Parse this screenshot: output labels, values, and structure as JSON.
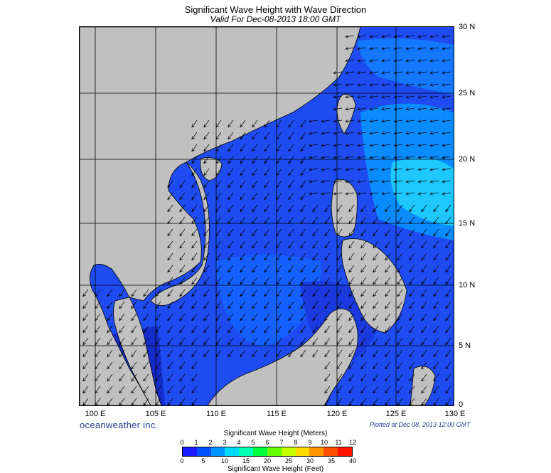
{
  "title": "Significant Wave Height with Wave Direction",
  "subtitle": "Valid For Dec-08-2013 18:00 GMT",
  "lon_labels": [
    "100 E",
    "105 E",
    "110 E",
    "115 E",
    "120 E",
    "125 E",
    "130 E"
  ],
  "lat_labels": [
    "30 N",
    "25 N",
    "20 N",
    "15 N",
    "10 N",
    "5 N",
    "0"
  ],
  "brand": "oceanweather inc.",
  "plotted": "Plotted at Dec 08, 2013 12:00 GMT",
  "colorbar": {
    "title_meters": "Significant Wave Height (Meters)",
    "title_feet": "Significant Wave Height (Feet)",
    "meters_ticks": [
      "0",
      "1",
      "2",
      "3",
      "4",
      "5",
      "6",
      "7",
      "8",
      "9",
      "10",
      "11",
      "12"
    ],
    "feet_ticks": [
      "0",
      "5",
      "10",
      "15",
      "20",
      "25",
      "30",
      "35",
      "40"
    ],
    "colors": [
      "#1a1aff",
      "#0050ff",
      "#0096ff",
      "#00dcff",
      "#00ffb4",
      "#00ff3c",
      "#64ff00",
      "#c8ff00",
      "#ffdc00",
      "#ff9600",
      "#ff5000",
      "#ff1400"
    ]
  },
  "map_data": {
    "lon_range": [
      99,
      130
    ],
    "lat_range": [
      0,
      30
    ],
    "land_color": "#c0c0c0",
    "ocean_base": "#1e4cf0"
  }
}
